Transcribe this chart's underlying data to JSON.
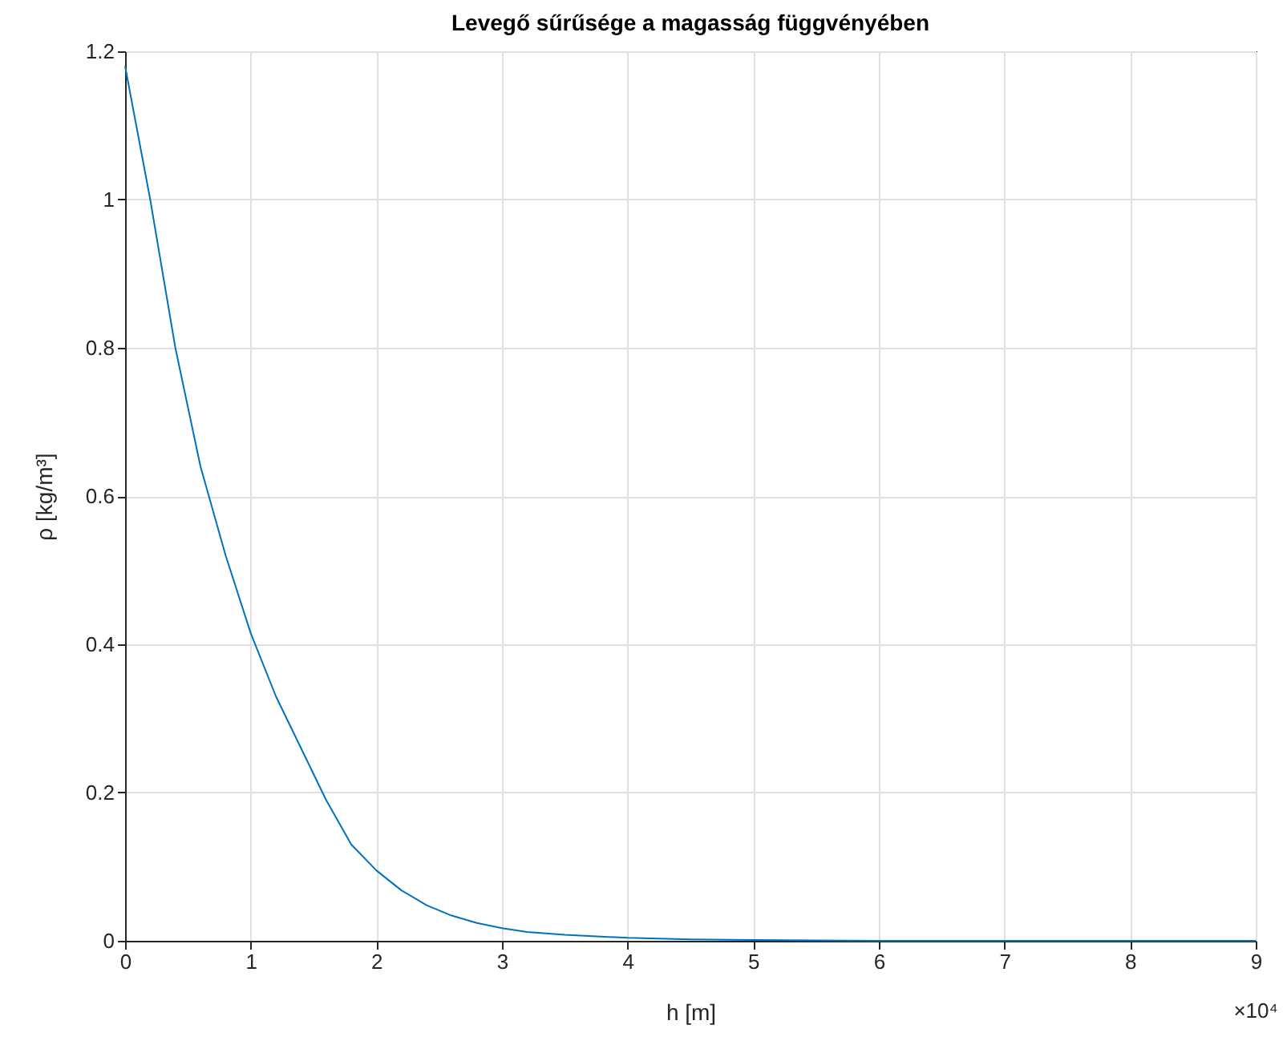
{
  "chart_data": {
    "type": "line",
    "title": "Levegő sűrűsége a magasság függvényében",
    "xlabel": "h [m]",
    "ylabel": "ρ [kg/m³]",
    "x": [
      0,
      0.2,
      0.4,
      0.6,
      0.8,
      1.0,
      1.2,
      1.4,
      1.6,
      1.8,
      2.0,
      2.2,
      2.4,
      2.6,
      2.8,
      3.0,
      3.2,
      3.5,
      4.0,
      4.5,
      5.0,
      6.0,
      7.0,
      8.0,
      9.0
    ],
    "series": [
      {
        "color": "#0072bd",
        "values": [
          1.18,
          1.0,
          0.8,
          0.64,
          0.52,
          0.415,
          0.33,
          0.26,
          0.19,
          0.13,
          0.095,
          0.068,
          0.048,
          0.034,
          0.024,
          0.017,
          0.012,
          0.008,
          0.004,
          0.002,
          0.001,
          0,
          0,
          0,
          0
        ]
      }
    ],
    "xlim": [
      0,
      9
    ],
    "ylim": [
      0,
      1.2
    ],
    "xticks": [
      0,
      1,
      2,
      3,
      4,
      5,
      6,
      7,
      8,
      9
    ],
    "yticks": [
      0,
      0.2,
      0.4,
      0.6,
      0.8,
      1,
      1.2
    ],
    "annotations": [
      "×10⁴"
    ],
    "grid": true,
    "line_style": "solid"
  }
}
